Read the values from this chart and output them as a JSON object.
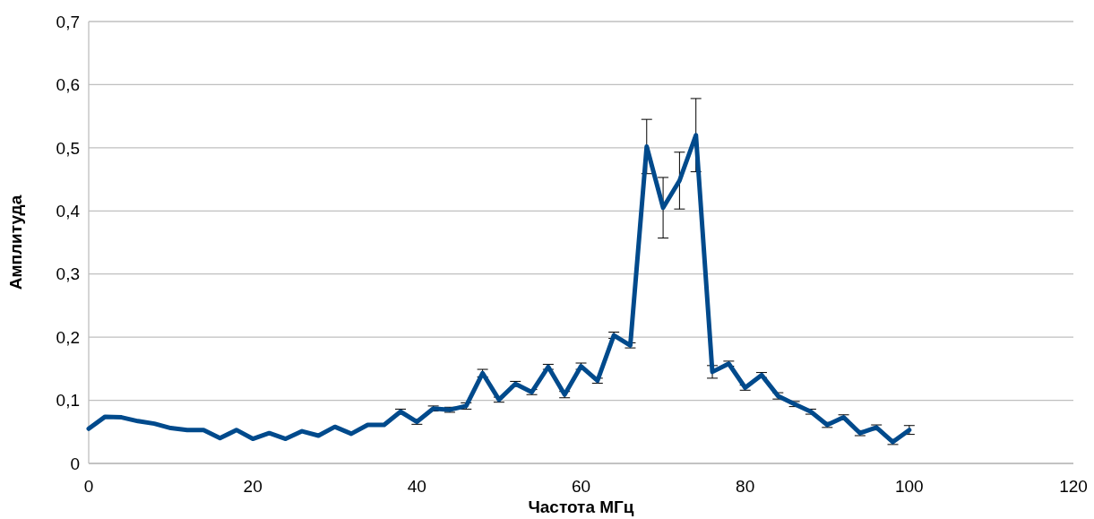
{
  "chart_data": {
    "type": "line",
    "xlabel": "Частота МГц",
    "ylabel": "Амплитуда",
    "x": [
      0,
      2,
      4,
      6,
      8,
      10,
      12,
      14,
      16,
      18,
      20,
      22,
      24,
      26,
      28,
      30,
      32,
      34,
      36,
      38,
      40,
      42,
      44,
      46,
      48,
      50,
      52,
      54,
      56,
      58,
      60,
      62,
      64,
      66,
      68,
      70,
      72,
      74,
      76,
      78,
      80,
      82,
      84,
      86,
      88,
      90,
      92,
      94,
      96,
      98,
      100
    ],
    "series": [
      {
        "color": "#004a8c",
        "values": [
          0.055,
          0.074,
          0.073,
          0.067,
          0.063,
          0.056,
          0.053,
          0.053,
          0.04,
          0.053,
          0.039,
          0.048,
          0.039,
          0.051,
          0.044,
          0.058,
          0.047,
          0.061,
          0.061,
          0.082,
          0.066,
          0.087,
          0.085,
          0.091,
          0.143,
          0.101,
          0.126,
          0.113,
          0.153,
          0.109,
          0.154,
          0.131,
          0.203,
          0.187,
          0.502,
          0.405,
          0.448,
          0.52,
          0.145,
          0.158,
          0.12,
          0.14,
          0.107,
          0.094,
          0.082,
          0.061,
          0.073,
          0.048,
          0.057,
          0.034,
          0.053
        ],
        "errors": [
          null,
          null,
          null,
          null,
          null,
          null,
          null,
          null,
          null,
          null,
          null,
          null,
          null,
          null,
          null,
          null,
          null,
          null,
          null,
          0.004,
          0.004,
          0.004,
          0.004,
          0.005,
          0.006,
          0.004,
          0.004,
          0.004,
          0.004,
          0.005,
          0.005,
          0.004,
          0.005,
          0.004,
          0.043,
          0.048,
          0.045,
          0.058,
          0.01,
          0.004,
          0.004,
          0.004,
          0.005,
          0.004,
          0.004,
          0.004,
          0.004,
          0.004,
          0.004,
          0.004,
          0.007
        ]
      }
    ],
    "xlim": [
      0,
      120
    ],
    "xticks": [
      0,
      20,
      40,
      60,
      80,
      100,
      120
    ],
    "ylim": [
      0,
      0.7
    ],
    "yticks": [
      0,
      {
        "value": 0.1,
        "label": "0,1"
      },
      {
        "value": 0.2,
        "label": "0,2"
      },
      {
        "value": 0.3,
        "label": "0,3"
      },
      {
        "value": 0.4,
        "label": "0,4"
      },
      {
        "value": 0.5,
        "label": "0,5"
      },
      {
        "value": 0.6,
        "label": "0,6"
      },
      {
        "value": 0.7,
        "label": "0,7"
      }
    ],
    "grid": "y",
    "marker": "none",
    "line_style": "solid"
  }
}
